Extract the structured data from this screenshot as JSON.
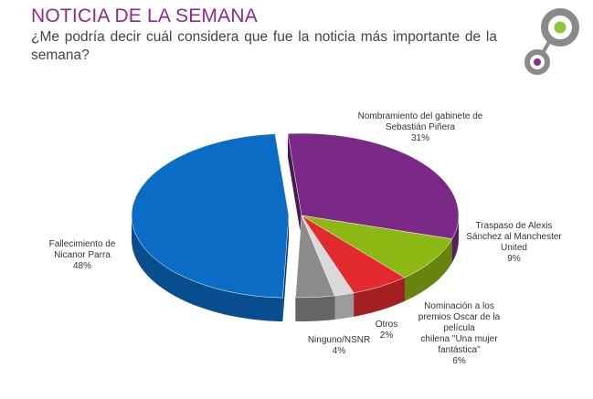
{
  "header": {
    "title": "NOTICIA DE LA SEMANA",
    "question": "¿Me podría decir cuál considera que fue la noticia más importante de la semana?"
  },
  "logo": {
    "icon": "two-ring-circles-logo",
    "colors": [
      "#8a8a8a",
      "#8dc63f",
      "#8e2a8f"
    ]
  },
  "chart_data": {
    "type": "pie",
    "style": "3d-exploded",
    "categories": [
      "Nombramiento del gabinete de Sebastián Piñera",
      "Traspaso de Alexis Sánchez al Manchester United",
      "Nominación a los premios Oscar de la película chilena \"Una mujer fantástica\"",
      "Otros",
      "Ninguno/NSNR",
      "Fallecimiento de Nicanor Parra"
    ],
    "values": [
      31,
      9,
      6,
      2,
      4,
      48
    ],
    "data_labels": [
      "31%",
      "9%",
      "6%",
      "2%",
      "4%",
      "48%"
    ],
    "colors": [
      "#7a2a86",
      "#8db814",
      "#e32b2f",
      "#d9d9d9",
      "#8c8c8c",
      "#0b6cc6"
    ],
    "label_lines": [
      [
        "Nombramiento del gabinete de",
        "Sebastián Piñera"
      ],
      [
        "Traspaso de Alexis",
        "Sánchez al Manchester",
        "United"
      ],
      [
        "Nominación a los",
        "premios Oscar de la",
        "película",
        "chilena \"Una mujer",
        "fantástica\""
      ],
      [
        "Otros"
      ],
      [
        "Ninguno/NSNR"
      ],
      [
        "Fallecimiento de",
        "Nicanor Parra"
      ]
    ],
    "exploded": "Fallecimiento de Nicanor Parra"
  }
}
